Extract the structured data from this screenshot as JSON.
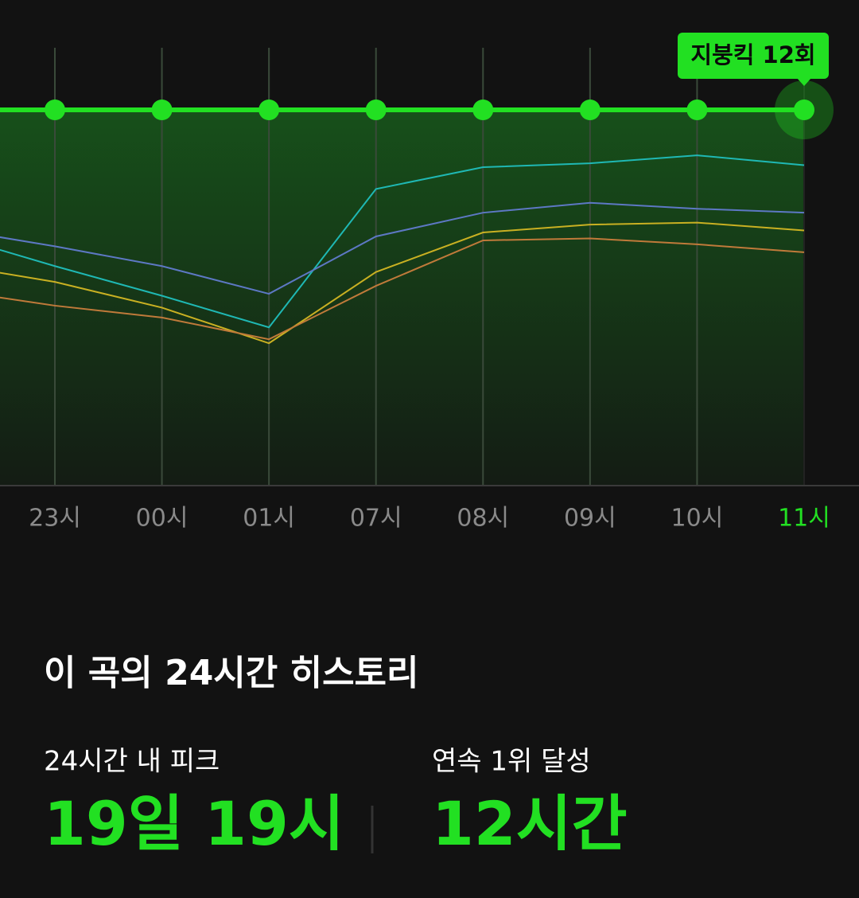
{
  "chart_data": {
    "type": "line",
    "categories": [
      null,
      "23시",
      "00시",
      "01시",
      "07시",
      "08시",
      "09시",
      "10시",
      "11시"
    ],
    "series": [
      {
        "color": "#1fb8b4",
        "values": [
          7.3,
          8.9,
          10.4,
          12.0,
          5.0,
          3.9,
          3.7,
          3.3,
          3.8
        ]
      },
      {
        "color": "#5d78c4",
        "values": [
          7.0,
          7.9,
          8.9,
          10.3,
          7.4,
          6.2,
          5.7,
          6.0,
          6.2
        ]
      },
      {
        "color": "#c9b022",
        "values": [
          8.8,
          9.7,
          11.0,
          12.8,
          9.2,
          7.2,
          6.8,
          6.7,
          7.1
        ]
      },
      {
        "color": "#c07a3a",
        "values": [
          10.1,
          10.9,
          11.5,
          12.6,
          9.9,
          7.6,
          7.5,
          7.8,
          8.2
        ]
      },
      {
        "color": "#22e022",
        "values": [
          1,
          1,
          1,
          1,
          1,
          1,
          1,
          1,
          1
        ]
      }
    ],
    "ylim": [
      1,
      20
    ],
    "tooltip": "지붕킥 12회"
  },
  "summary": {
    "title": "이 곡의 24시간 히스토리",
    "stats": [
      {
        "label": "24시간 내 피크",
        "value": "19일 19시"
      },
      {
        "label": "연속 1위 달성",
        "value": "12시간"
      }
    ]
  }
}
